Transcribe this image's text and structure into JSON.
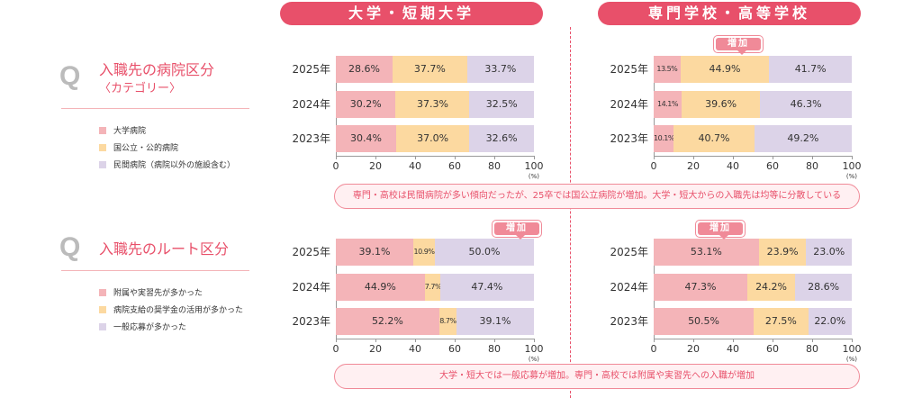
{
  "headers": {
    "university": "大学・短期大学",
    "vocational": "専門学校・高等学校"
  },
  "q_letter": "Q",
  "sections": [
    {
      "title": "入職先の病院区分",
      "subtitle": "〈カテゴリー〉",
      "legend": [
        "大学病院",
        "国公立・公的病院",
        "民間病院（病院以外の施設含む）"
      ],
      "note": "専門・高校は民間病院が多い傾向だったが、25卒では国公立病院が増加。大学・短大からの入職先は均等に分散している"
    },
    {
      "title": "入職先のルート区分",
      "legend": [
        "附属や実習先が多かった",
        "病院支給の奨学金の活用が多かった",
        "一般応募が多かった"
      ],
      "note": "大学・短大では一般応募が増加。専門・高校では附属や実習先への入職が増加"
    }
  ],
  "badge_label": "増加",
  "colors": [
    "#f4b4b8",
    "#fcd9a0",
    "#dcd3e8"
  ],
  "chart_data": [
    {
      "type": "bar",
      "stacked": true,
      "orientation": "horizontal",
      "title": "入職先の病院区分 - 大学・短期大学",
      "categories": [
        "2025年",
        "2024年",
        "2023年"
      ],
      "series": [
        {
          "name": "大学病院",
          "values": [
            28.6,
            30.2,
            30.4
          ]
        },
        {
          "name": "国公立・公的病院",
          "values": [
            37.7,
            37.3,
            37.0
          ]
        },
        {
          "name": "民間病院（病院以外の施設含む）",
          "values": [
            33.7,
            32.5,
            32.6
          ]
        }
      ],
      "xticks": [
        "0",
        "20",
        "40",
        "60",
        "80",
        "100"
      ],
      "xlim": [
        0,
        100
      ],
      "unit": "(%)"
    },
    {
      "type": "bar",
      "stacked": true,
      "orientation": "horizontal",
      "title": "入職先の病院区分 - 専門学校・高等学校",
      "categories": [
        "2025年",
        "2024年",
        "2023年"
      ],
      "series": [
        {
          "name": "大学病院",
          "values": [
            13.5,
            14.1,
            10.1
          ]
        },
        {
          "name": "国公立・公的病院",
          "values": [
            44.9,
            39.6,
            40.7
          ]
        },
        {
          "name": "民間病院（病院以外の施設含む）",
          "values": [
            41.7,
            46.3,
            49.2
          ]
        }
      ],
      "xticks": [
        "0",
        "20",
        "40",
        "60",
        "80",
        "100"
      ],
      "xlim": [
        0,
        100
      ],
      "unit": "(%)"
    },
    {
      "type": "bar",
      "stacked": true,
      "orientation": "horizontal",
      "title": "入職先のルート区分 - 大学・短期大学",
      "categories": [
        "2025年",
        "2024年",
        "2023年"
      ],
      "series": [
        {
          "name": "附属や実習先が多かった",
          "values": [
            39.1,
            44.9,
            52.2
          ]
        },
        {
          "name": "病院支給の奨学金の活用が多かった",
          "values": [
            10.9,
            7.7,
            8.7
          ]
        },
        {
          "name": "一般応募が多かった",
          "values": [
            50.0,
            47.4,
            39.1
          ]
        }
      ],
      "xticks": [
        "0",
        "20",
        "40",
        "60",
        "80",
        "100"
      ],
      "xlim": [
        0,
        100
      ],
      "unit": "(%)"
    },
    {
      "type": "bar",
      "stacked": true,
      "orientation": "horizontal",
      "title": "入職先のルート区分 - 専門学校・高等学校",
      "categories": [
        "2025年",
        "2024年",
        "2023年"
      ],
      "series": [
        {
          "name": "附属や実習先が多かった",
          "values": [
            53.1,
            47.3,
            50.5
          ]
        },
        {
          "name": "病院支給の奨学金の活用が多かった",
          "values": [
            23.9,
            24.2,
            27.5
          ]
        },
        {
          "name": "一般応募が多かった",
          "values": [
            23.0,
            28.6,
            22.0
          ]
        }
      ],
      "xticks": [
        "0",
        "20",
        "40",
        "60",
        "80",
        "100"
      ],
      "xlim": [
        0,
        100
      ],
      "unit": "(%)"
    }
  ]
}
